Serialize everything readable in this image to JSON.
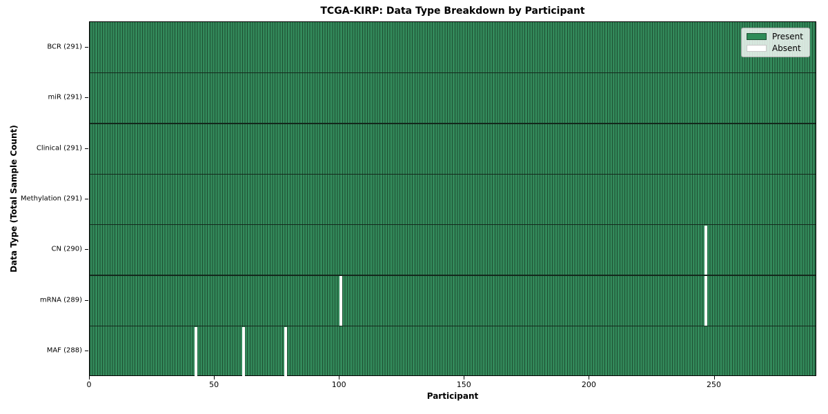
{
  "chart_data": {
    "type": "heatmap",
    "title": "TCGA-KIRP: Data Type Breakdown by Participant",
    "xlabel": "Participant",
    "ylabel": "Data Type (Total Sample Count)",
    "n_participants": 291,
    "xlim": [
      0,
      291
    ],
    "xticks": [
      0,
      50,
      100,
      150,
      200,
      250
    ],
    "rows": [
      {
        "label": "BCR (291)",
        "data_type": "BCR",
        "present_count": 291,
        "absent_participants": []
      },
      {
        "label": "miR (291)",
        "data_type": "miR",
        "present_count": 291,
        "absent_participants": []
      },
      {
        "label": "Clinical (291)",
        "data_type": "Clinical",
        "present_count": 291,
        "absent_participants": []
      },
      {
        "label": "Methylation (291)",
        "data_type": "Methylation",
        "present_count": 291,
        "absent_participants": []
      },
      {
        "label": "CN (290)",
        "data_type": "CN",
        "present_count": 290,
        "absent_participants": [
          246
        ]
      },
      {
        "label": "mRNA (289)",
        "data_type": "mRNA",
        "present_count": 289,
        "absent_participants": [
          100,
          246
        ]
      },
      {
        "label": "MAF (288)",
        "data_type": "MAF",
        "present_count": 288,
        "absent_participants": [
          42,
          61,
          78
        ]
      }
    ],
    "legend": {
      "position": "upper-right",
      "entries": [
        {
          "label": "Present",
          "color": "#2e8b57"
        },
        {
          "label": "Absent",
          "color": "#ffffff"
        }
      ]
    },
    "colors": {
      "present_fill": "#338a5b",
      "cell_edge": "#1d4d31",
      "absent_fill": "#ffffff",
      "row_boundary_line": "#14281c",
      "swatch_edge": "#1d4d31",
      "spine": "#000000",
      "background": "#ffffff"
    }
  }
}
